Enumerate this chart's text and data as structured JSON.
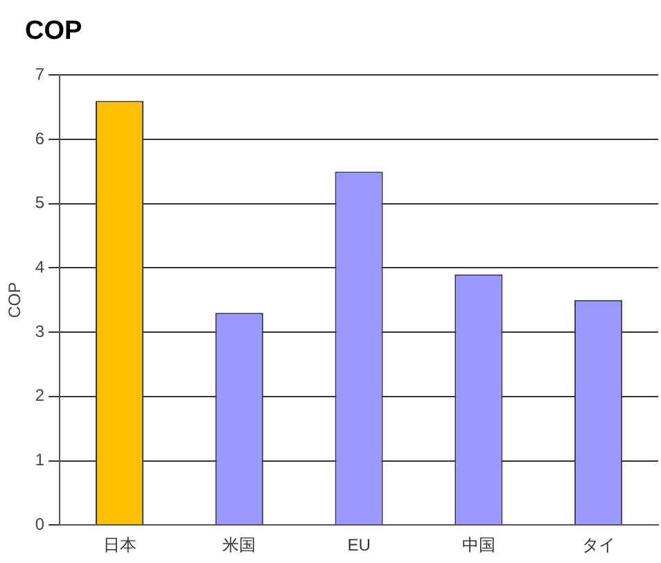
{
  "chart_data": {
    "type": "bar",
    "title": "COP",
    "ylabel": "COP",
    "categories": [
      "日本",
      "米国",
      "EU",
      "中国",
      "タイ"
    ],
    "values": [
      6.6,
      3.3,
      5.5,
      3.9,
      3.5
    ],
    "colors": [
      "#ffc000",
      "#9999ff",
      "#9999ff",
      "#9999ff",
      "#9999ff"
    ],
    "ylim": [
      0,
      7
    ],
    "yticks": [
      0,
      1,
      2,
      3,
      4,
      5,
      6,
      7
    ],
    "grid": "y",
    "legend": false
  }
}
